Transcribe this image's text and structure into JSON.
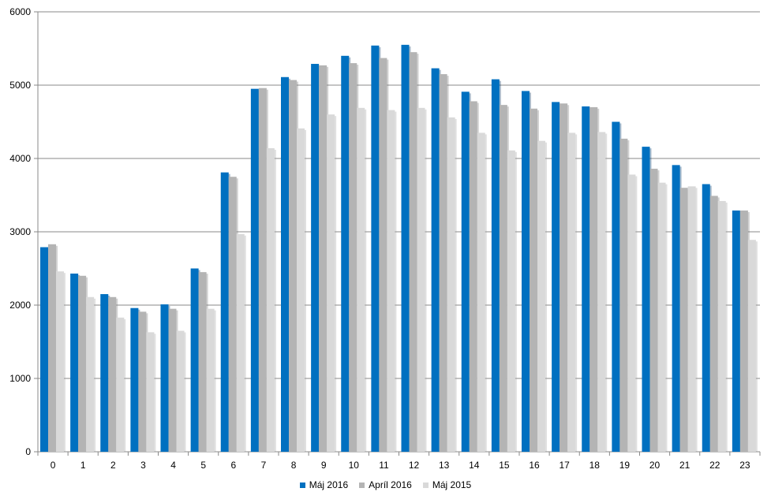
{
  "chart_data": {
    "type": "bar",
    "categories": [
      "0",
      "1",
      "2",
      "3",
      "4",
      "5",
      "6",
      "7",
      "8",
      "9",
      "10",
      "11",
      "12",
      "13",
      "14",
      "15",
      "16",
      "17",
      "18",
      "19",
      "20",
      "21",
      "22",
      "23"
    ],
    "series": [
      {
        "name": "Máj 2016",
        "color": "#0070c0",
        "values": [
          2790,
          2430,
          2150,
          1960,
          2010,
          2500,
          3810,
          4950,
          5110,
          5290,
          5400,
          5540,
          5550,
          5230,
          4910,
          5080,
          4920,
          4770,
          4710,
          4500,
          4160,
          3910,
          3650,
          3290
        ]
      },
      {
        "name": "Apríl 2016",
        "color": "#b4b4b4",
        "values": [
          2830,
          2400,
          2110,
          1910,
          1950,
          2450,
          3750,
          4960,
          5070,
          5270,
          5300,
          5370,
          5450,
          5150,
          4780,
          4730,
          4680,
          4750,
          4700,
          4270,
          3860,
          3600,
          3490,
          3290
        ]
      },
      {
        "name": "Máj 2015",
        "color": "#d9d9d9",
        "values": [
          2460,
          2110,
          1830,
          1630,
          1650,
          1950,
          2970,
          4140,
          4410,
          4600,
          4690,
          4660,
          4690,
          4560,
          4350,
          4110,
          4240,
          4350,
          4360,
          3780,
          3670,
          3620,
          3420,
          2890
        ]
      }
    ],
    "ylim": [
      0,
      6000
    ],
    "yticks": [
      "0",
      "1000",
      "2000",
      "3000",
      "4000",
      "5000",
      "6000"
    ],
    "title": "",
    "xlabel": "",
    "ylabel": "",
    "grid": true,
    "legend_position": "bottom"
  }
}
